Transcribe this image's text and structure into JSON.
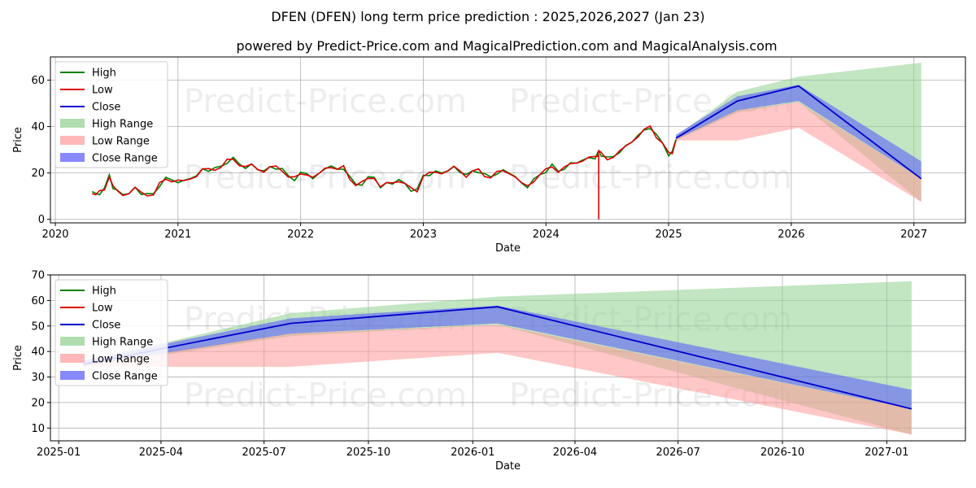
{
  "title": "DFEN (DFEN) long term price prediction : 2025,2026,2027 (Jan 23)",
  "subtitle": "powered by Predict-Price.com and MagicalPrediction.com and MagicalAnalysis.com",
  "watermark": "Predict-Price.com",
  "colors": {
    "high": "#008000",
    "low": "#dd0000",
    "close": "#0000cc",
    "high_range": "#8fcf8f",
    "low_range": "#ff9999",
    "close_range": "#5555ff",
    "grid": "#b0b0b0"
  },
  "legend": [
    {
      "label": "High",
      "kind": "line",
      "color_key": "high"
    },
    {
      "label": "Low",
      "kind": "line",
      "color_key": "low"
    },
    {
      "label": "Close",
      "kind": "line",
      "color_key": "close"
    },
    {
      "label": "High Range",
      "kind": "patch",
      "color_key": "high_range"
    },
    {
      "label": "Low Range",
      "kind": "patch",
      "color_key": "low_range"
    },
    {
      "label": "Close Range",
      "kind": "patch",
      "color_key": "close_range"
    }
  ],
  "chart_data": [
    {
      "type": "line",
      "name": "long-term",
      "xlabel": "Date",
      "ylabel": "Price",
      "xlim": [
        2019.96,
        2027.42
      ],
      "ylim": [
        -1.5,
        70
      ],
      "x_ticks": [
        2020,
        2021,
        2022,
        2023,
        2024,
        2025,
        2026,
        2027
      ],
      "x_tick_labels": [
        "2020",
        "2021",
        "2022",
        "2023",
        "2024",
        "2025",
        "2026",
        "2027"
      ],
      "y_ticks": [
        0,
        20,
        40,
        60
      ],
      "y_tick_labels": [
        "0",
        "20",
        "40",
        "60"
      ],
      "history": {
        "x": [
          2020.3,
          2020.33,
          2020.36,
          2020.4,
          2020.44,
          2020.47,
          2020.5,
          2020.55,
          2020.6,
          2020.65,
          2020.7,
          2020.75,
          2020.8,
          2020.85,
          2020.9,
          2020.95,
          2021.0,
          2021.05,
          2021.1,
          2021.15,
          2021.2,
          2021.25,
          2021.3,
          2021.35,
          2021.4,
          2021.45,
          2021.5,
          2021.55,
          2021.6,
          2021.65,
          2021.7,
          2021.75,
          2021.8,
          2021.85,
          2021.9,
          2021.95,
          2022.0,
          2022.05,
          2022.1,
          2022.15,
          2022.2,
          2022.25,
          2022.3,
          2022.35,
          2022.4,
          2022.45,
          2022.5,
          2022.55,
          2022.6,
          2022.65,
          2022.7,
          2022.75,
          2022.8,
          2022.85,
          2022.9,
          2022.95,
          2023.0,
          2023.05,
          2023.1,
          2023.15,
          2023.2,
          2023.25,
          2023.3,
          2023.35,
          2023.4,
          2023.45,
          2023.5,
          2023.55,
          2023.6,
          2023.65,
          2023.7,
          2023.75,
          2023.8,
          2023.85,
          2023.9,
          2023.95,
          2024.0,
          2024.05,
          2024.1,
          2024.15,
          2024.2,
          2024.25,
          2024.3,
          2024.35,
          2024.4,
          2024.42,
          2024.43,
          2024.45,
          2024.5,
          2024.55,
          2024.6,
          2024.65,
          2024.7,
          2024.75,
          2024.8,
          2024.85,
          2024.9,
          2024.95,
          2025.0,
          2025.03,
          2025.06
        ],
        "close": [
          12,
          10.5,
          11.5,
          13,
          19,
          14,
          12,
          11,
          11.5,
          13,
          11.5,
          11,
          10.5,
          15,
          17.5,
          17,
          16.5,
          16,
          18,
          19,
          21,
          21.5,
          22,
          22.5,
          25,
          26,
          24,
          22.5,
          23,
          22,
          21,
          22,
          22.5,
          21.5,
          18.5,
          17.5,
          19.5,
          20,
          18,
          19,
          22.5,
          23,
          21,
          22.5,
          18,
          15,
          15.5,
          17.5,
          18.5,
          14,
          15,
          16,
          17,
          15,
          13,
          12.5,
          19,
          19.5,
          20,
          20.5,
          21,
          22,
          21,
          19,
          20.5,
          21,
          19,
          18.5,
          20,
          20.5,
          20.5,
          18.5,
          15,
          14.5,
          17,
          19,
          21,
          23,
          21,
          22,
          23.5,
          25,
          25.5,
          26,
          27,
          28,
          29.5,
          28,
          26,
          27.5,
          29,
          31,
          34,
          36,
          38,
          40,
          36,
          33,
          28,
          28.5,
          35
        ],
        "low_spike": {
          "x": 2024.43,
          "value": 0
        }
      },
      "forecast": {
        "x": [
          2025.06,
          2025.56,
          2026.06,
          2027.06
        ],
        "close": [
          35,
          51,
          57.5,
          17.5
        ],
        "high_range": {
          "upper": [
            36,
            55,
            61.5,
            67.5
          ],
          "lower": [
            34,
            46,
            50.5,
            7.5
          ]
        },
        "low_range": {
          "upper": [
            35,
            47,
            50.5,
            17.5
          ],
          "lower": [
            34,
            34,
            39.5,
            7.5
          ]
        },
        "close_range": {
          "upper": [
            36.5,
            53,
            58,
            25
          ],
          "lower": [
            34.5,
            47,
            51,
            17.5
          ]
        }
      }
    },
    {
      "type": "line",
      "name": "forecast-zoom",
      "xlabel": "Date",
      "ylabel": "Price",
      "xlim": [
        2024.98,
        2027.19
      ],
      "ylim": [
        5,
        70
      ],
      "x_ticks": [
        2025.0,
        2025.247,
        2025.496,
        2025.748,
        2026.0,
        2026.247,
        2026.496,
        2026.748,
        2027.0
      ],
      "x_tick_labels": [
        "2025-01",
        "2025-04",
        "2025-07",
        "2025-10",
        "2026-01",
        "2026-04",
        "2026-07",
        "2026-10",
        "2027-01"
      ],
      "y_ticks": [
        10,
        20,
        30,
        40,
        50,
        60,
        70
      ],
      "y_tick_labels": [
        "10",
        "20",
        "30",
        "40",
        "50",
        "60",
        "70"
      ],
      "forecast": {
        "x": [
          2025.06,
          2025.56,
          2026.06,
          2027.06
        ],
        "close": [
          35,
          51,
          57.5,
          17.5
        ],
        "high_range": {
          "upper": [
            36,
            55,
            61.5,
            67.5
          ],
          "lower": [
            34,
            46,
            50.5,
            7.5
          ]
        },
        "low_range": {
          "upper": [
            35,
            47,
            50.5,
            17.5
          ],
          "lower": [
            34,
            34,
            39.5,
            7.5
          ]
        },
        "close_range": {
          "upper": [
            36.5,
            53,
            58,
            25
          ],
          "lower": [
            34.5,
            47,
            51,
            17.5
          ]
        }
      }
    }
  ]
}
